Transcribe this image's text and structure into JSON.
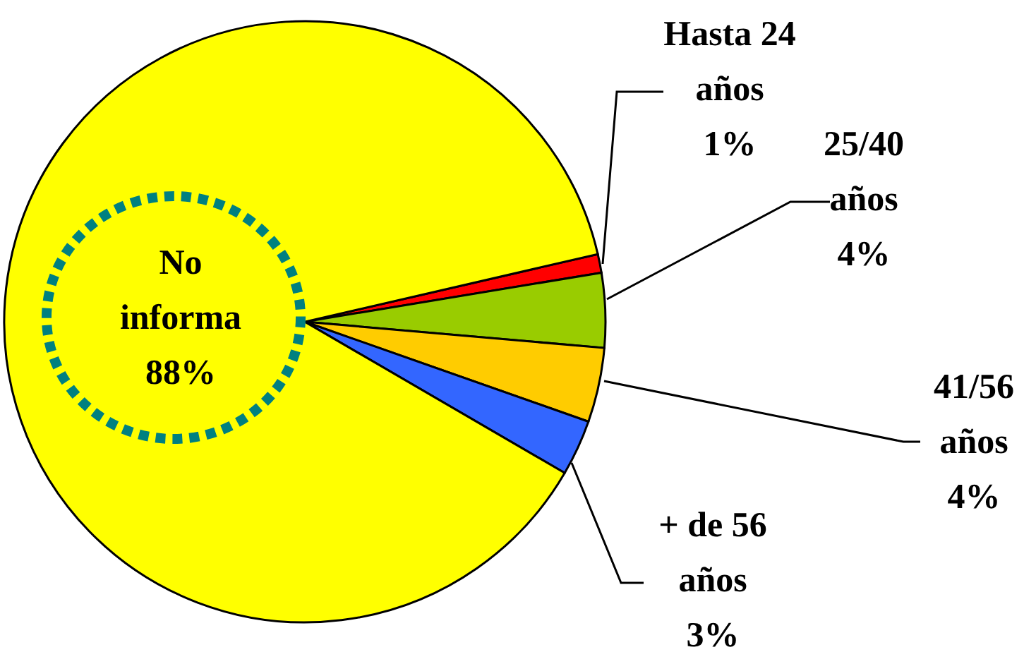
{
  "chart_data": {
    "type": "pie",
    "categories": [
      "Hasta 24 años",
      "25/40 años",
      "41/56 años",
      "+ de 56 años",
      "No informa"
    ],
    "values": [
      1,
      4,
      4,
      3,
      88
    ],
    "colors": [
      "#ff0000",
      "#99cc00",
      "#ffcc00",
      "#3366ff",
      "#ffff00"
    ],
    "value_labels": [
      "1%",
      "4%",
      "4%",
      "3%",
      "88%"
    ]
  }
}
